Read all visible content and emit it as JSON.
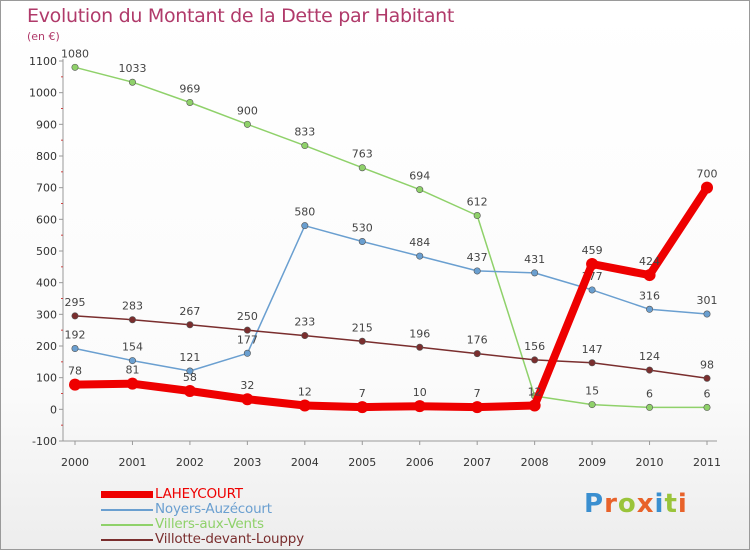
{
  "title": "Evolution du Montant de la Dette par Habitant",
  "unit_label": "(en €)",
  "logo": {
    "text": "Proxiti",
    "letter_colors": [
      "#3a8fd0",
      "#e8622a",
      "#9ac43a",
      "#e8622a",
      "#3a8fd0",
      "#9ac43a",
      "#e8622a"
    ]
  },
  "chart_data": {
    "type": "line",
    "title": "Evolution du Montant de la Dette par Habitant",
    "ylabel": "(en €)",
    "xlabel": "",
    "x": [
      "2000",
      "2001",
      "2002",
      "2003",
      "2004",
      "2005",
      "2006",
      "2007",
      "2008",
      "2009",
      "2010",
      "2011"
    ],
    "ylim": [
      -100,
      1100
    ],
    "yticks": [
      -100,
      0,
      100,
      200,
      300,
      400,
      500,
      600,
      700,
      800,
      900,
      1000,
      1100
    ],
    "grid": false,
    "legend_position": "bottom-left",
    "series": [
      {
        "name": "Villers-aux-Vents",
        "color": "#8fd16a",
        "emphasis": false,
        "values": [
          1080,
          1033,
          969,
          900,
          833,
          763,
          694,
          612,
          42,
          15,
          6,
          6
        ],
        "labels": [
          "1080",
          "1033",
          "969",
          "900",
          "833",
          "763",
          "694",
          "612",
          "",
          "15",
          "6",
          "6"
        ]
      },
      {
        "name": "Noyers-Auzécourt",
        "color": "#6a9fd0",
        "emphasis": false,
        "values": [
          192,
          154,
          121,
          177,
          580,
          530,
          484,
          437,
          431,
          377,
          316,
          301
        ],
        "labels": [
          "192",
          "154",
          "121",
          "177",
          "580",
          "530",
          "484",
          "437",
          "431",
          "377",
          "316",
          "301"
        ]
      },
      {
        "name": "Villotte-devant-Louppy",
        "color": "#7a2e2e",
        "emphasis": false,
        "values": [
          295,
          283,
          267,
          250,
          233,
          215,
          196,
          176,
          156,
          147,
          124,
          98
        ],
        "labels": [
          "295",
          "283",
          "267",
          "250",
          "233",
          "215",
          "196",
          "176",
          "156",
          "147",
          "124",
          "98"
        ]
      },
      {
        "name": "LAHEYCOURT",
        "color": "#ee0000",
        "emphasis": true,
        "values": [
          78,
          81,
          58,
          32,
          12,
          7,
          10,
          7,
          12,
          459,
          424,
          700
        ],
        "labels": [
          "78",
          "81",
          "58",
          "32",
          "12",
          "7",
          "10",
          "7",
          "12",
          "459",
          "424",
          "700"
        ]
      }
    ],
    "legend": [
      {
        "name": "LAHEYCOURT",
        "color": "#ee0000",
        "emphasis": true
      },
      {
        "name": "Noyers-Auzécourt",
        "color": "#6a9fd0",
        "emphasis": false
      },
      {
        "name": "Villers-aux-Vents",
        "color": "#8fd16a",
        "emphasis": false
      },
      {
        "name": "Villotte-devant-Louppy",
        "color": "#7a2e2e",
        "emphasis": false
      }
    ]
  }
}
